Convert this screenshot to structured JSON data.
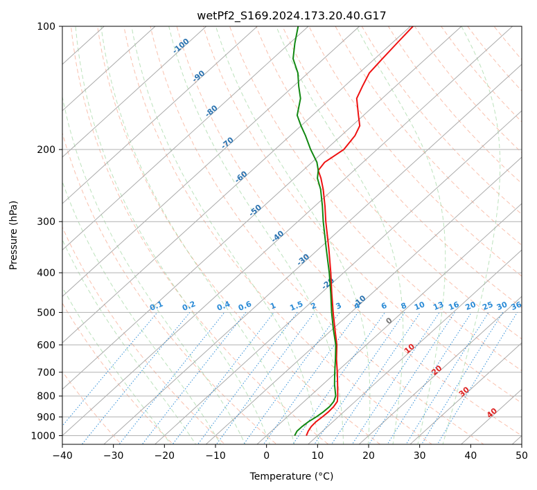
{
  "chart_data": {
    "type": "line",
    "title": "wetPf2_S169.2024.173.20.40.G17",
    "xlabel": "Temperature (°C)",
    "ylabel": "Pressure (hPa)",
    "xlim": [
      -40,
      50
    ],
    "ylim": [
      1050,
      100
    ],
    "y_scale": "log",
    "grid": true,
    "x_ticks": [
      -40,
      -30,
      -20,
      -10,
      0,
      10,
      20,
      30,
      40,
      50
    ],
    "y_ticks": [
      100,
      200,
      300,
      400,
      500,
      600,
      700,
      800,
      900,
      1000
    ],
    "skew": "skew-T log-p",
    "series": [
      {
        "color": "#ee1111",
        "points": [
          [
            1000,
            7.8
          ],
          [
            975,
            7.2
          ],
          [
            950,
            6.8
          ],
          [
            925,
            6.7
          ],
          [
            900,
            6.9
          ],
          [
            875,
            7.0
          ],
          [
            850,
            6.9
          ],
          [
            825,
            6.5
          ],
          [
            800,
            5.4
          ],
          [
            750,
            2.9
          ],
          [
            700,
            0.2
          ],
          [
            650,
            -2.8
          ],
          [
            600,
            -5.8
          ],
          [
            550,
            -9.5
          ],
          [
            500,
            -13.5
          ],
          [
            450,
            -17.8
          ],
          [
            400,
            -22.5
          ],
          [
            350,
            -28.0
          ],
          [
            300,
            -34.5
          ],
          [
            275,
            -38.0
          ],
          [
            250,
            -42.0
          ],
          [
            235,
            -44.8
          ],
          [
            225,
            -47.0
          ],
          [
            215,
            -47.5
          ],
          [
            200,
            -46.5
          ],
          [
            185,
            -47.3
          ],
          [
            175,
            -48.5
          ],
          [
            165,
            -51.0
          ],
          [
            150,
            -55.0
          ],
          [
            140,
            -56.5
          ],
          [
            130,
            -58.0
          ],
          [
            120,
            -58.5
          ],
          [
            110,
            -59.0
          ],
          [
            100,
            -59.5
          ]
        ]
      },
      {
        "color": "#118811",
        "points": [
          [
            1000,
            5.5
          ],
          [
            975,
            5.0
          ],
          [
            950,
            5.0
          ],
          [
            925,
            5.2
          ],
          [
            900,
            5.7
          ],
          [
            875,
            6.0
          ],
          [
            850,
            6.1
          ],
          [
            825,
            5.8
          ],
          [
            800,
            5.0
          ],
          [
            750,
            2.3
          ],
          [
            700,
            -0.3
          ],
          [
            650,
            -3.0
          ],
          [
            600,
            -6.0
          ],
          [
            550,
            -9.8
          ],
          [
            500,
            -13.8
          ],
          [
            450,
            -18.0
          ],
          [
            400,
            -22.8
          ],
          [
            350,
            -28.5
          ],
          [
            300,
            -35.0
          ],
          [
            275,
            -38.5
          ],
          [
            250,
            -42.5
          ],
          [
            235,
            -45.5
          ],
          [
            225,
            -47.0
          ],
          [
            215,
            -49.0
          ],
          [
            200,
            -53.0
          ],
          [
            185,
            -57.0
          ],
          [
            175,
            -60.0
          ],
          [
            165,
            -63.0
          ],
          [
            150,
            -66.0
          ],
          [
            140,
            -69.0
          ],
          [
            130,
            -72.0
          ],
          [
            120,
            -76.0
          ],
          [
            110,
            -79.0
          ],
          [
            100,
            -82.0
          ]
        ]
      }
    ],
    "background_lines": {
      "dry_adiabats": [
        -30,
        -20,
        -10,
        0,
        10,
        20,
        30,
        40,
        50,
        60,
        70,
        80,
        90,
        100,
        110,
        120,
        130,
        140,
        150,
        160,
        170,
        180,
        190,
        200
      ],
      "moist_adiabats": [
        -20,
        -15,
        -10,
        -5,
        0,
        5,
        10,
        15,
        20,
        25,
        30,
        35
      ],
      "mixing_ratio_lines": [
        0.1,
        0.2,
        0.4,
        0.6,
        1,
        1.5,
        2,
        3,
        4,
        6,
        8,
        10,
        13,
        16,
        20,
        25,
        30,
        36
      ],
      "isotherms": [
        -130,
        -120,
        -110,
        -100,
        -90,
        -80,
        -70,
        -60,
        -50,
        -40,
        -30,
        -20,
        -10,
        0,
        10,
        20,
        30,
        40,
        50
      ]
    },
    "annotations": {
      "isotherm_labels": [
        {
          "text": "-100",
          "t": -100,
          "p": 113
        },
        {
          "text": "-90",
          "t": -90,
          "p": 134
        },
        {
          "text": "-80",
          "t": -80,
          "p": 163
        },
        {
          "text": "-70",
          "t": -70,
          "p": 195
        },
        {
          "text": "-60",
          "t": -60,
          "p": 236
        },
        {
          "text": "-50",
          "t": -50,
          "p": 285
        },
        {
          "text": "-40",
          "t": -40,
          "p": 330
        },
        {
          "text": "-30",
          "t": -30,
          "p": 376
        },
        {
          "text": "-20",
          "t": -20,
          "p": 430
        },
        {
          "text": "-10",
          "t": -10,
          "p": 475
        },
        {
          "text": "0",
          "t": 0,
          "p": 530,
          "color": "#777777"
        },
        {
          "text": "10",
          "t": 10,
          "p": 620,
          "color": "#dd2222"
        },
        {
          "text": "20",
          "t": 20,
          "p": 700,
          "color": "#dd2222"
        },
        {
          "text": "30",
          "t": 30,
          "p": 790,
          "color": "#dd2222"
        },
        {
          "text": "40",
          "t": 40,
          "p": 890,
          "color": "#dd2222"
        }
      ],
      "mixing_ratio_labels": [
        "0.1",
        "0.2",
        "0.4",
        "0.6",
        "1",
        "1.5",
        "2",
        "3",
        "4",
        "6",
        "8",
        "10",
        "13",
        "16",
        "20",
        "25",
        "30",
        "36"
      ],
      "mixing_ratio_label_pressure": 500
    }
  }
}
